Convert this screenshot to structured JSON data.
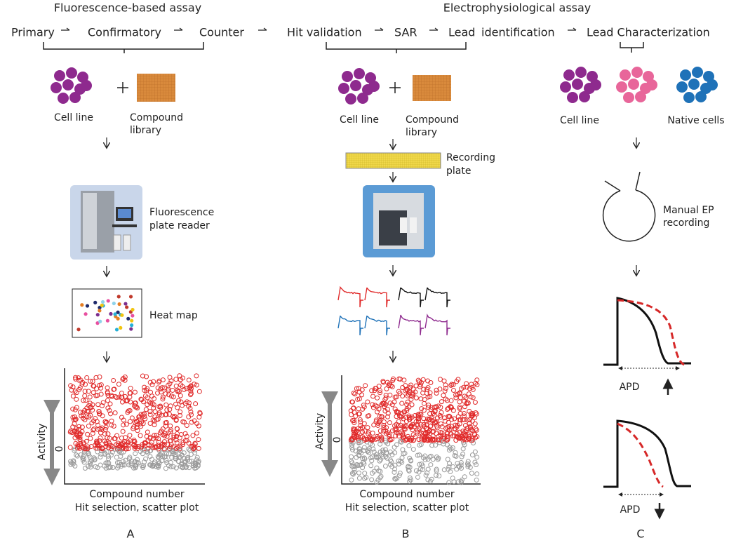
{
  "header": {
    "fluorescence": "Fluorescence-based assay",
    "electrophysiology": "Electrophysiological assay"
  },
  "pipeline": [
    "Primary",
    "Confirmatory",
    "Counter",
    "Hit validation",
    "SAR",
    "Lead",
    "identification",
    "Lead Characterization"
  ],
  "panels": [
    {
      "letter": "A",
      "cell_line": "Cell line",
      "compound_library": [
        "Compound",
        "library"
      ],
      "instrument": [
        "Fluorescence",
        "plate reader"
      ],
      "heat_map": "Heat map",
      "y_axis": "Activity",
      "zero": "0",
      "x_axis": "Compound number",
      "caption": "Hit selection, scatter plot"
    },
    {
      "letter": "B",
      "cell_line": "Cell line",
      "compound_library": [
        "Compound",
        "library"
      ],
      "recording_plate": [
        "Recording",
        "plate"
      ],
      "y_axis": "Activity",
      "zero": "0",
      "x_axis": "Compound number",
      "caption": "Hit selection, scatter plot"
    },
    {
      "letter": "C",
      "cell_line": "Cell line",
      "native_cells": "Native cells",
      "recording": [
        "Manual EP",
        "recording"
      ],
      "apd_up": "APD",
      "apd_down": "APD"
    }
  ]
}
